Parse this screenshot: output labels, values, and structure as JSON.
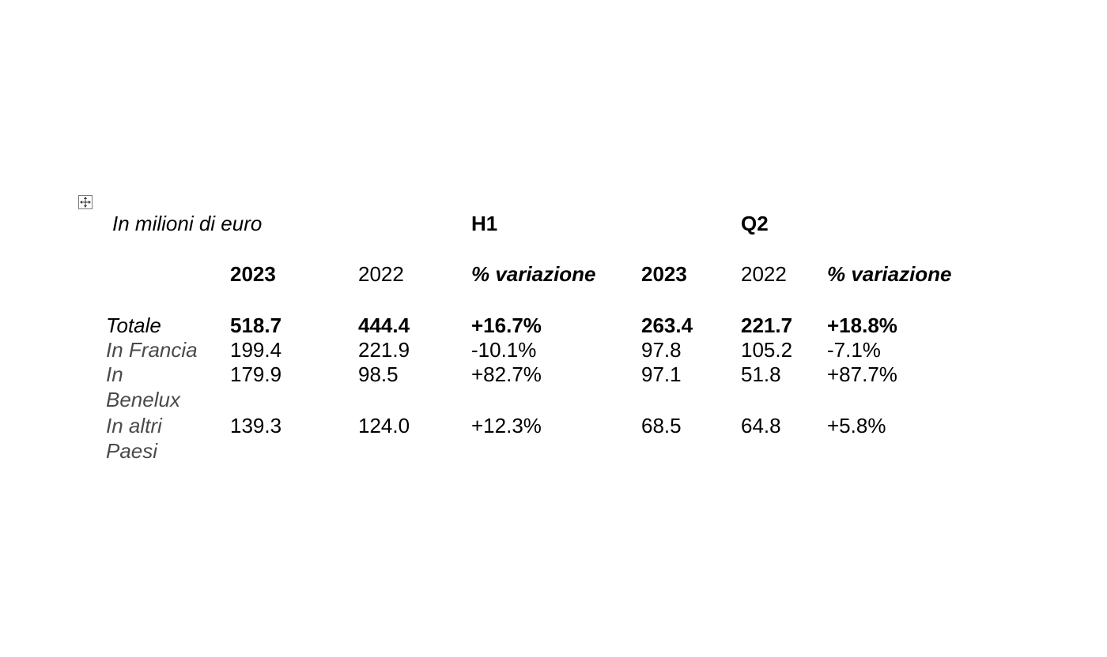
{
  "table": {
    "unit_label": "In milioni di euro",
    "group_labels": {
      "h1": "H1",
      "q2": "Q2"
    },
    "columns": [
      "2023",
      "2022",
      "% variazione",
      "2023",
      "2022",
      "% variazione"
    ],
    "rows": [
      {
        "label": "Totale",
        "values": [
          "518.7",
          "444.4",
          "+16.7%",
          "263.4",
          "221.7",
          "+18.8%"
        ]
      },
      {
        "label": "In Francia",
        "values": [
          "199.4",
          "221.9",
          "-10.1%",
          "97.8",
          "105.2",
          "-7.1%"
        ]
      },
      {
        "label": "In Benelux",
        "values": [
          "179.9",
          "98.5",
          "+82.7%",
          "97.1",
          "51.8",
          "+87.7%"
        ]
      },
      {
        "label": "In altri Paesi",
        "values": [
          "139.3",
          "124.0",
          "+12.3%",
          "68.5",
          "64.8",
          "+5.8%"
        ]
      }
    ]
  }
}
